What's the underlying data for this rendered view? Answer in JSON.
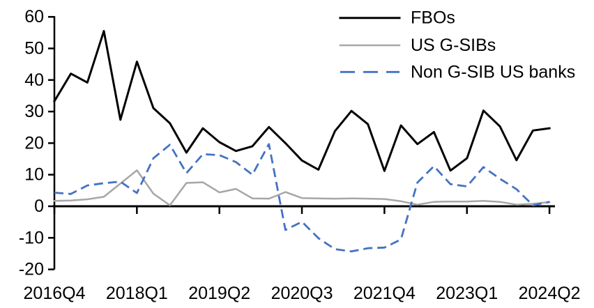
{
  "chart_data": {
    "type": "line",
    "title": "",
    "xlabel": "",
    "ylabel": "",
    "grid": false,
    "legend_position": "top-right",
    "ylim": [
      -20,
      60
    ],
    "yticks": [
      60,
      50,
      40,
      30,
      20,
      10,
      0,
      -10,
      -20
    ],
    "categories": [
      "2016Q4",
      "2017Q1",
      "2017Q2",
      "2017Q3",
      "2017Q4",
      "2018Q1",
      "2018Q2",
      "2018Q3",
      "2018Q4",
      "2019Q1",
      "2019Q2",
      "2019Q3",
      "2019Q4",
      "2020Q1",
      "2020Q2",
      "2020Q3",
      "2020Q4",
      "2021Q1",
      "2021Q2",
      "2021Q3",
      "2021Q4",
      "2022Q1",
      "2022Q2",
      "2022Q3",
      "2022Q4",
      "2023Q1",
      "2023Q2",
      "2023Q3",
      "2023Q4",
      "2024Q1",
      "2024Q2"
    ],
    "x_tick_labels": [
      {
        "index": 0,
        "label": "2016Q4"
      },
      {
        "index": 5,
        "label": "2018Q1"
      },
      {
        "index": 10,
        "label": "2019Q2"
      },
      {
        "index": 15,
        "label": "2020Q3"
      },
      {
        "index": 20,
        "label": "2021Q4"
      },
      {
        "index": 25,
        "label": "2023Q1"
      },
      {
        "index": 30,
        "label": "2024Q2"
      }
    ],
    "series": [
      {
        "name": "FBOs",
        "color": "#000000",
        "style": "solid",
        "values": [
          33.3,
          42,
          39.2,
          55.5,
          27.4,
          45.8,
          31.1,
          26.3,
          17,
          24.7,
          20.3,
          17.5,
          19,
          25.1,
          20,
          14.5,
          11.6,
          23.8,
          30.2,
          26,
          11.2,
          25.6,
          19.7,
          23.5,
          11.3,
          15.2,
          30.3,
          25.3,
          14.6,
          24,
          24.7
        ]
      },
      {
        "name": "US G-SIBs",
        "color": "#a6a6a6",
        "style": "solid",
        "values": [
          1.7,
          1.8,
          2.2,
          3.0,
          7.2,
          11.4,
          4.0,
          0.3,
          7.4,
          7.6,
          4.4,
          5.5,
          2.5,
          2.4,
          4.5,
          2.6,
          2.5,
          2.4,
          2.5,
          2.4,
          2.3,
          1.6,
          0.5,
          1.4,
          1.5,
          1.5,
          1.7,
          1.4,
          0.5,
          0.8,
          1.3
        ]
      },
      {
        "name": "Non G-SIB US banks",
        "color": "#4472c4",
        "style": "dashed",
        "values": [
          4.3,
          3.9,
          6.6,
          7.3,
          7.8,
          4.2,
          15.2,
          19.5,
          10.5,
          16.5,
          16.2,
          14,
          10,
          19.7,
          -7.5,
          -4.9,
          -10.1,
          -13.6,
          -14.3,
          -13.3,
          -13.1,
          -10.5,
          7.5,
          12.7,
          7.0,
          6.3,
          12.4,
          8.7,
          5.4,
          0.3,
          1.4
        ]
      }
    ]
  }
}
